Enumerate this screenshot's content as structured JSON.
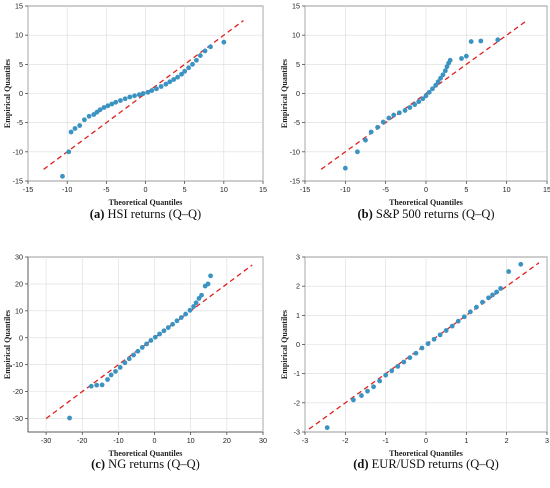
{
  "chart_data": [
    {
      "type": "scatter",
      "panel_id": "a",
      "caption_letter": "(a)",
      "caption_text": " HSI returns (Q–Q)",
      "xlabel": "Theoretical Quantiles",
      "ylabel": "Empirical Quantiles",
      "xlim": [
        -15,
        15
      ],
      "ylim": [
        -15,
        15
      ],
      "xticks": [
        -15,
        -10,
        -5,
        0,
        5,
        10,
        15
      ],
      "yticks": [
        -15,
        -10,
        -5,
        0,
        5,
        10,
        15
      ],
      "grid": true,
      "reference_line": {
        "from": [
          -13,
          -13
        ],
        "to": [
          12.5,
          12.5
        ],
        "color": "#e02020",
        "style": "dashed"
      },
      "point_color": "#3b93c2",
      "points": [
        [
          -10.6,
          -14.2
        ],
        [
          -9.8,
          -10.0
        ],
        [
          -9.5,
          -6.6
        ],
        [
          -9.0,
          -6.0
        ],
        [
          -8.4,
          -5.5
        ],
        [
          -7.8,
          -4.5
        ],
        [
          -7.2,
          -3.9
        ],
        [
          -6.6,
          -3.6
        ],
        [
          -6.2,
          -3.2
        ],
        [
          -5.8,
          -2.8
        ],
        [
          -5.3,
          -2.4
        ],
        [
          -4.8,
          -2.1
        ],
        [
          -4.3,
          -1.8
        ],
        [
          -3.8,
          -1.5
        ],
        [
          -3.2,
          -1.2
        ],
        [
          -2.6,
          -0.9
        ],
        [
          -2.0,
          -0.6
        ],
        [
          -1.4,
          -0.4
        ],
        [
          -0.8,
          -0.2
        ],
        [
          -0.3,
          0.0
        ],
        [
          0.3,
          0.2
        ],
        [
          0.8,
          0.5
        ],
        [
          1.4,
          0.8
        ],
        [
          2.0,
          1.2
        ],
        [
          2.6,
          1.6
        ],
        [
          3.1,
          2.0
        ],
        [
          3.6,
          2.4
        ],
        [
          4.1,
          2.8
        ],
        [
          4.6,
          3.3
        ],
        [
          5.0,
          3.8
        ],
        [
          5.5,
          4.4
        ],
        [
          6.0,
          5.0
        ],
        [
          6.5,
          5.7
        ],
        [
          7.0,
          6.5
        ],
        [
          7.6,
          7.3
        ],
        [
          8.3,
          8.0
        ],
        [
          10.0,
          8.8
        ]
      ]
    },
    {
      "type": "scatter",
      "panel_id": "b",
      "caption_letter": "(b)",
      "caption_text": " S&P 500 returns (Q–Q)",
      "xlabel": "Theoretical Quantiles",
      "ylabel": "Empirical Quantiles",
      "xlim": [
        -15,
        15
      ],
      "ylim": [
        -15,
        15
      ],
      "xticks": [
        -15,
        -10,
        -5,
        0,
        5,
        10,
        15
      ],
      "yticks": [
        -15,
        -10,
        -5,
        0,
        5,
        10,
        15
      ],
      "grid": true,
      "reference_line": {
        "from": [
          -13,
          -13
        ],
        "to": [
          12.5,
          12.5
        ],
        "color": "#e02020",
        "style": "dashed"
      },
      "point_color": "#3b93c2",
      "points": [
        [
          -10.0,
          -12.8
        ],
        [
          -8.5,
          -10.0
        ],
        [
          -7.5,
          -8.0
        ],
        [
          -6.8,
          -6.6
        ],
        [
          -6.0,
          -5.8
        ],
        [
          -5.3,
          -4.9
        ],
        [
          -4.6,
          -4.2
        ],
        [
          -4.0,
          -3.7
        ],
        [
          -3.3,
          -3.3
        ],
        [
          -2.6,
          -2.9
        ],
        [
          -2.0,
          -2.4
        ],
        [
          -1.4,
          -1.9
        ],
        [
          -0.9,
          -1.4
        ],
        [
          -0.4,
          -0.9
        ],
        [
          0.0,
          -0.4
        ],
        [
          0.4,
          0.2
        ],
        [
          0.8,
          0.8
        ],
        [
          1.2,
          1.4
        ],
        [
          1.5,
          2.0
        ],
        [
          1.8,
          2.6
        ],
        [
          2.1,
          3.2
        ],
        [
          2.4,
          3.9
        ],
        [
          2.6,
          4.6
        ],
        [
          2.8,
          5.2
        ],
        [
          3.0,
          5.7
        ],
        [
          4.4,
          6.0
        ],
        [
          5.0,
          6.4
        ],
        [
          5.6,
          8.9
        ],
        [
          6.8,
          9.0
        ],
        [
          8.9,
          9.2
        ]
      ]
    },
    {
      "type": "scatter",
      "panel_id": "c",
      "caption_letter": "(c)",
      "caption_text": " NG returns (Q–Q)",
      "xlabel": "Theoretical Quantiles",
      "ylabel": "Empirical Quantiles",
      "xlim": [
        -35,
        30
      ],
      "ylim": [
        -35,
        30
      ],
      "xticks": [
        -30,
        -20,
        -10,
        0,
        10,
        20,
        30
      ],
      "yticks": [
        -30,
        -20,
        -10,
        0,
        10,
        20,
        30
      ],
      "grid": true,
      "reference_line": {
        "from": [
          -30,
          -30
        ],
        "to": [
          27,
          27
        ],
        "color": "#e02020",
        "style": "dashed"
      },
      "point_color": "#3b93c2",
      "points": [
        [
          -23.5,
          -29.8
        ],
        [
          -17.5,
          -18.0
        ],
        [
          -16.0,
          -17.6
        ],
        [
          -14.5,
          -17.5
        ],
        [
          -13.0,
          -15.5
        ],
        [
          -12.0,
          -13.8
        ],
        [
          -10.8,
          -12.5
        ],
        [
          -9.5,
          -11.0
        ],
        [
          -8.2,
          -9.3
        ],
        [
          -7.0,
          -7.8
        ],
        [
          -5.8,
          -6.4
        ],
        [
          -4.6,
          -5.0
        ],
        [
          -3.4,
          -3.6
        ],
        [
          -2.2,
          -2.3
        ],
        [
          -1.0,
          -1.0
        ],
        [
          0.2,
          0.2
        ],
        [
          1.4,
          1.4
        ],
        [
          2.6,
          2.6
        ],
        [
          3.8,
          3.8
        ],
        [
          5.0,
          5.0
        ],
        [
          6.2,
          6.3
        ],
        [
          7.4,
          7.5
        ],
        [
          8.6,
          8.8
        ],
        [
          9.8,
          10.2
        ],
        [
          10.8,
          11.6
        ],
        [
          11.5,
          13.0
        ],
        [
          12.3,
          14.6
        ],
        [
          13.0,
          15.8
        ],
        [
          14.0,
          19.2
        ],
        [
          14.8,
          20.0
        ],
        [
          15.5,
          23.0
        ]
      ]
    },
    {
      "type": "scatter",
      "panel_id": "d",
      "caption_letter": "(d)",
      "caption_text": " EUR/USD returns (Q–Q)",
      "xlabel": "Theoretical Quantiles",
      "ylabel": "Empirical Quantiles",
      "xlim": [
        -3,
        3
      ],
      "ylim": [
        -3,
        3
      ],
      "xticks": [
        -3,
        -2,
        -1,
        0,
        1,
        2,
        3
      ],
      "yticks": [
        -3,
        -2,
        -1,
        0,
        1,
        2,
        3
      ],
      "grid": true,
      "reference_line": {
        "from": [
          -2.9,
          -2.9
        ],
        "to": [
          2.8,
          2.8
        ],
        "color": "#e02020",
        "style": "dashed"
      },
      "point_color": "#3b93c2",
      "points": [
        [
          -2.45,
          -2.85
        ],
        [
          -1.8,
          -1.9
        ],
        [
          -1.6,
          -1.75
        ],
        [
          -1.45,
          -1.6
        ],
        [
          -1.3,
          -1.45
        ],
        [
          -1.15,
          -1.25
        ],
        [
          -1.0,
          -1.05
        ],
        [
          -0.85,
          -0.9
        ],
        [
          -0.7,
          -0.75
        ],
        [
          -0.55,
          -0.6
        ],
        [
          -0.4,
          -0.45
        ],
        [
          -0.25,
          -0.3
        ],
        [
          -0.1,
          -0.12
        ],
        [
          0.05,
          0.03
        ],
        [
          0.2,
          0.18
        ],
        [
          0.35,
          0.33
        ],
        [
          0.5,
          0.48
        ],
        [
          0.65,
          0.63
        ],
        [
          0.8,
          0.8
        ],
        [
          0.95,
          0.95
        ],
        [
          1.1,
          1.12
        ],
        [
          1.25,
          1.28
        ],
        [
          1.4,
          1.45
        ],
        [
          1.55,
          1.6
        ],
        [
          1.65,
          1.7
        ],
        [
          1.75,
          1.8
        ],
        [
          1.85,
          1.92
        ],
        [
          2.05,
          2.5
        ],
        [
          2.35,
          2.75
        ]
      ]
    }
  ]
}
